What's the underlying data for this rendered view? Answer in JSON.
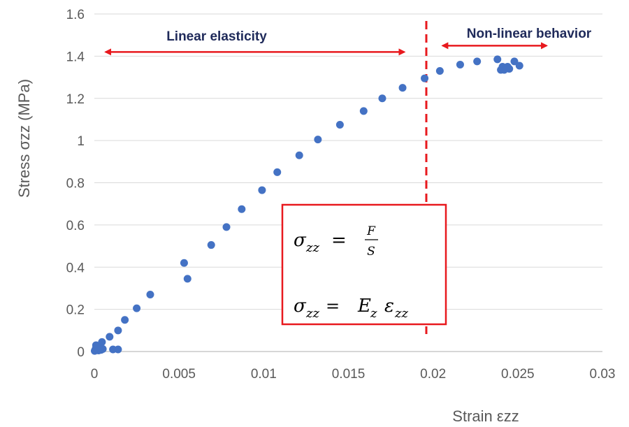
{
  "chart_data": {
    "type": "scatter",
    "xlabel": "Strain εzz",
    "ylabel": "Stress σzz (MPa)",
    "xlim": [
      0,
      0.03
    ],
    "ylim": [
      0,
      1.6
    ],
    "x_ticks": [
      "0",
      "0.005",
      "0.01",
      "0.015",
      "0.02",
      "0.025",
      "0.03"
    ],
    "y_ticks": [
      "0",
      "0.2",
      "0.4",
      "0.6",
      "0.8",
      "1",
      "1.2",
      "1.4",
      "1.6"
    ],
    "grid": "horizontal",
    "marker_color": "#4472c4",
    "points": [
      [
        2e-05,
        0.003
      ],
      [
        5e-05,
        0.008
      ],
      [
        8e-05,
        0.012
      ],
      [
        0.0001,
        0.018
      ],
      [
        0.00015,
        0.022
      ],
      [
        0.0002,
        0.01
      ],
      [
        0.00025,
        0.005
      ],
      [
        0.0003,
        0.015
      ],
      [
        0.00035,
        0.02
      ],
      [
        0.0004,
        0.008
      ],
      [
        0.00045,
        0.045
      ],
      [
        0.0005,
        0.012
      ],
      [
        0.0001,
        0.03
      ],
      [
        0.0002,
        0.025
      ],
      [
        0.0009,
        0.07
      ],
      [
        0.0011,
        0.01
      ],
      [
        0.0014,
        0.01
      ],
      [
        0.0014,
        0.1
      ],
      [
        0.0018,
        0.15
      ],
      [
        0.0025,
        0.205
      ],
      [
        0.0033,
        0.27
      ],
      [
        0.0053,
        0.42
      ],
      [
        0.0055,
        0.345
      ],
      [
        0.0069,
        0.505
      ],
      [
        0.0078,
        0.59
      ],
      [
        0.0087,
        0.675
      ],
      [
        0.0099,
        0.765
      ],
      [
        0.0108,
        0.85
      ],
      [
        0.0121,
        0.93
      ],
      [
        0.0132,
        1.005
      ],
      [
        0.0145,
        1.075
      ],
      [
        0.0159,
        1.14
      ],
      [
        0.017,
        1.2
      ],
      [
        0.0182,
        1.25
      ],
      [
        0.0195,
        1.295
      ],
      [
        0.0204,
        1.33
      ],
      [
        0.0216,
        1.36
      ],
      [
        0.0226,
        1.375
      ],
      [
        0.0238,
        1.385
      ],
      [
        0.024,
        1.335
      ],
      [
        0.0241,
        1.35
      ],
      [
        0.0242,
        1.335
      ],
      [
        0.0244,
        1.35
      ],
      [
        0.0245,
        1.34
      ],
      [
        0.0248,
        1.375
      ],
      [
        0.0251,
        1.355
      ]
    ],
    "annotations": {
      "linear_label": "Linear elasticity",
      "nonlinear_label": "Non-linear behavior",
      "boundary_strain": 0.0196,
      "linear_range": [
        0.0005,
        0.0183
      ],
      "nonlinear_range": [
        0.0204,
        0.0267
      ],
      "arrow_stress": 1.42,
      "arrow_color": "#e8191e",
      "boundary_color": "#e8191e",
      "formula_1": {
        "lhs": "σ",
        "sub": "zz",
        "eq": " = ",
        "num": "F",
        "den": "S"
      },
      "formula_2": {
        "lhs": "σ",
        "sub": "zz",
        "eq": " = ",
        "E": "E",
        "E_sub": "z",
        "eps": "ε",
        "eps_sub": "zz"
      }
    }
  }
}
